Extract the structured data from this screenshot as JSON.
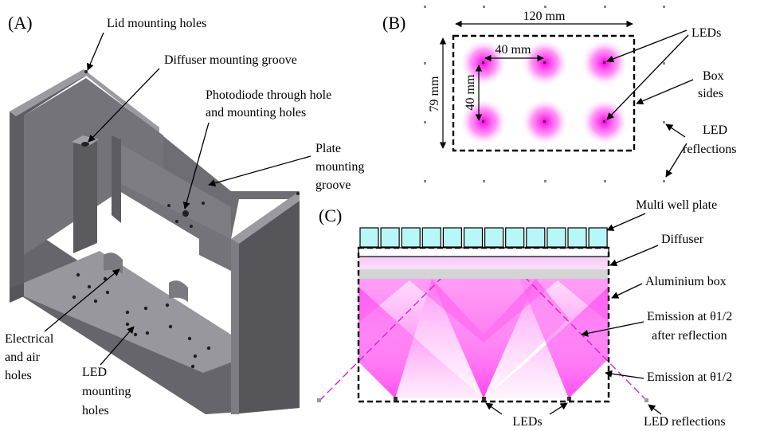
{
  "panels": {
    "a": "(A)",
    "b": "(B)",
    "c": "(C)"
  },
  "panel_a": {
    "lid_holes": "Lid mounting holes",
    "diffuser_groove": "Diffuser mounting groove",
    "photodiode_1": "Photodiode through hole",
    "photodiode_2": "and mounting holes",
    "plate_groove_1": "Plate",
    "plate_groove_2": "mounting",
    "plate_groove_3": "groove",
    "elec_1": "Electrical",
    "elec_2": "and air",
    "elec_3": "holes",
    "led_holes_1": "LED",
    "led_holes_2": "mounting",
    "led_holes_3": "holes"
  },
  "panel_b": {
    "width": "120 mm",
    "height": "79 mm",
    "spacing_x": "40 mm",
    "spacing_y": "40 mm",
    "leds": "LEDs",
    "box_sides_1": "Box",
    "box_sides_2": "sides",
    "reflections_1": "LED",
    "reflections_2": "reflections"
  },
  "panel_c": {
    "plate": "Multi well plate",
    "diffuser": "Diffuser",
    "box": "Aluminium box",
    "refl_emission_1": "Emission at θ1/2",
    "refl_emission_2": "after reflection",
    "emission": "Emission at θ1/2",
    "leds": "LEDs",
    "reflections": "LED reflections"
  },
  "colors": {
    "magenta": "#ff33ee",
    "well": "#b8f7f7",
    "metal_face": "#6e6e74",
    "metal_top": "#8d8d93",
    "metal_side": "#57575c"
  }
}
